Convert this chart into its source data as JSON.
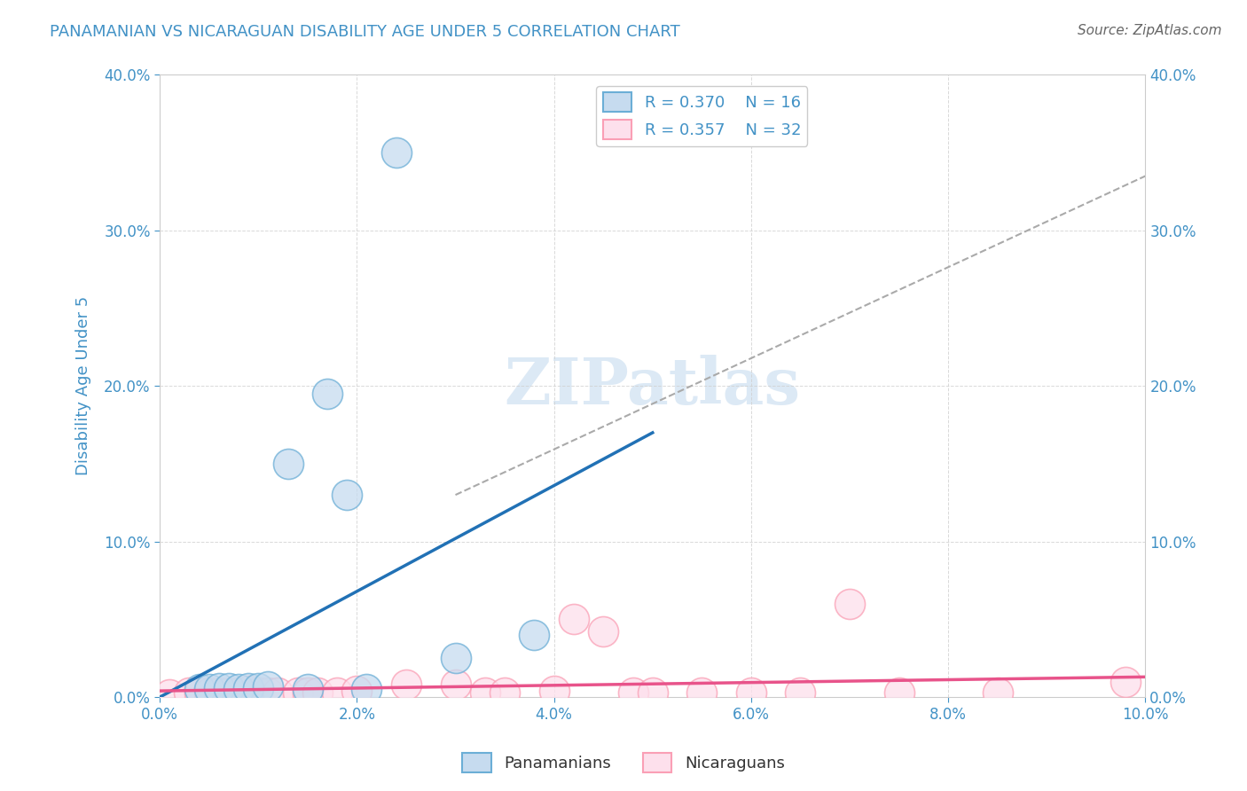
{
  "title": "PANAMANIAN VS NICARAGUAN DISABILITY AGE UNDER 5 CORRELATION CHART",
  "source": "Source: ZipAtlas.com",
  "ylabel": "Disability Age Under 5",
  "xlim": [
    0.0,
    0.1
  ],
  "ylim": [
    0.0,
    0.4
  ],
  "xticks": [
    0.0,
    0.02,
    0.04,
    0.06,
    0.08,
    0.1
  ],
  "yticks": [
    0.0,
    0.1,
    0.2,
    0.3,
    0.4
  ],
  "xticklabels": [
    "0.0%",
    "2.0%",
    "4.0%",
    "6.0%",
    "8.0%",
    "10.0%"
  ],
  "yticklabels": [
    "0.0%",
    "10.0%",
    "20.0%",
    "30.0%",
    "40.0%"
  ],
  "pan_x": [
    0.004,
    0.005,
    0.006,
    0.007,
    0.008,
    0.009,
    0.01,
    0.011,
    0.013,
    0.015,
    0.017,
    0.019,
    0.021,
    0.024,
    0.03,
    0.038
  ],
  "pan_y": [
    0.005,
    0.005,
    0.006,
    0.006,
    0.005,
    0.006,
    0.006,
    0.007,
    0.15,
    0.005,
    0.195,
    0.13,
    0.005,
    0.35,
    0.025,
    0.04
  ],
  "nic_x": [
    0.001,
    0.003,
    0.004,
    0.005,
    0.006,
    0.007,
    0.008,
    0.009,
    0.01,
    0.011,
    0.012,
    0.014,
    0.015,
    0.016,
    0.018,
    0.02,
    0.025,
    0.03,
    0.033,
    0.035,
    0.04,
    0.042,
    0.045,
    0.048,
    0.05,
    0.055,
    0.06,
    0.065,
    0.07,
    0.075,
    0.085,
    0.098
  ],
  "nic_y": [
    0.002,
    0.003,
    0.003,
    0.003,
    0.003,
    0.003,
    0.003,
    0.004,
    0.003,
    0.003,
    0.003,
    0.003,
    0.003,
    0.003,
    0.003,
    0.004,
    0.008,
    0.008,
    0.003,
    0.003,
    0.004,
    0.05,
    0.042,
    0.003,
    0.003,
    0.003,
    0.003,
    0.003,
    0.06,
    0.003,
    0.003,
    0.01
  ],
  "blue_line_x0": 0.0,
  "blue_line_y0": 0.0,
  "blue_line_x1": 0.05,
  "blue_line_y1": 0.17,
  "pink_line_x0": 0.0,
  "pink_line_y0": 0.004,
  "pink_line_x1": 0.1,
  "pink_line_y1": 0.013,
  "dash_line_x0": 0.03,
  "dash_line_y0": 0.13,
  "dash_line_x1": 0.1,
  "dash_line_y1": 0.335,
  "R_panamanian": 0.37,
  "N_panamanian": 16,
  "R_nicaraguan": 0.357,
  "N_nicaraguan": 32,
  "blue_scatter_face": "#c6dbef",
  "blue_scatter_edge": "#6baed6",
  "pink_scatter_face": "#fde0ec",
  "pink_scatter_edge": "#fa9fb5",
  "blue_line_color": "#2171b5",
  "pink_line_color": "#e8538a",
  "dash_color": "#aaaaaa",
  "watermark": "ZIPatlas",
  "watermark_color": "#c6dbef",
  "title_color": "#4292c6",
  "label_color": "#4292c6",
  "background_color": "#ffffff",
  "grid_color": "#d0d0d0"
}
